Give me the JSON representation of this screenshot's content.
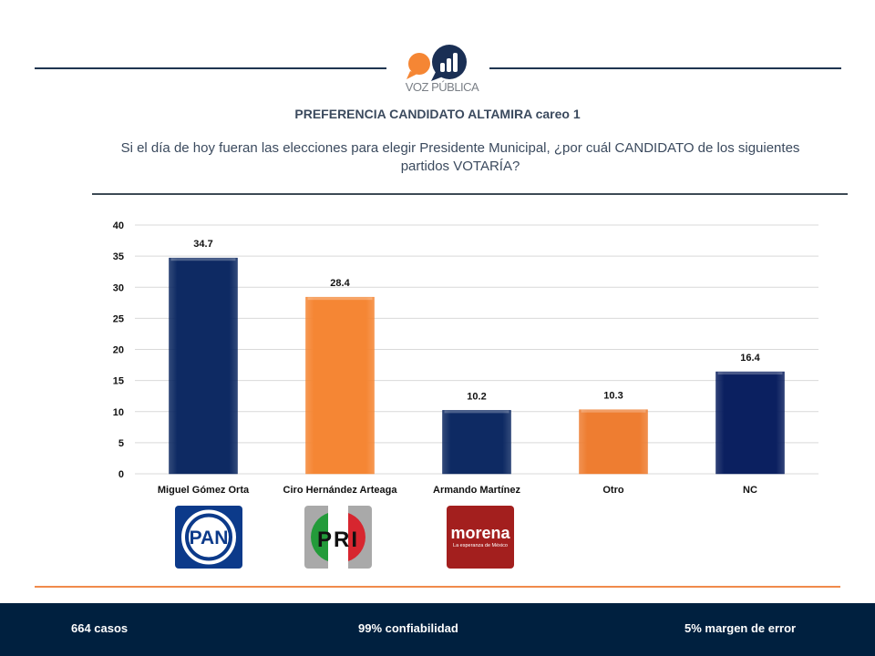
{
  "brand": {
    "name": "VOZ PÚBLICA",
    "colors": {
      "navy": "#0e2a63",
      "orange": "#f58634",
      "footer": "#00203f"
    }
  },
  "header": {
    "title": "PREFERENCIA CANDIDATO ALTAMIRA careo 1",
    "question": "Si el día de hoy fueran las elecciones para elegir Presidente Municipal, ¿por cuál CANDIDATO de los siguientes partidos VOTARÍA?"
  },
  "parties": [
    {
      "name": "PAN",
      "icon": "pan-logo"
    },
    {
      "name": "PRI",
      "icon": "pri-logo"
    },
    {
      "name": "morena",
      "tagline": "La esperanza de México",
      "icon": "morena-logo"
    }
  ],
  "footer": {
    "cases": "664 casos",
    "confidence": "99% confiabilidad",
    "margin": "5% margen de error"
  },
  "chart_data": {
    "type": "bar",
    "title": "PREFERENCIA CANDIDATO ALTAMIRA careo 1",
    "categories": [
      "Miguel Gómez Orta",
      "Ciro Hernández Arteaga",
      "Armando Martínez",
      "Otro",
      "NC"
    ],
    "values": [
      34.7,
      28.4,
      10.2,
      10.3,
      16.4
    ],
    "value_labels": [
      "34.7",
      "28.4",
      "10.2",
      "10.3",
      "16.4"
    ],
    "colors": [
      "#0e2a63",
      "#f58634",
      "#0e2a63",
      "#ee7d31",
      "#0b2060"
    ],
    "xlabel": "",
    "ylabel": "",
    "ylim": [
      0,
      40
    ],
    "yticks": [
      0,
      5,
      10,
      15,
      20,
      25,
      30,
      35,
      40
    ],
    "grid": true,
    "legend": "none"
  }
}
